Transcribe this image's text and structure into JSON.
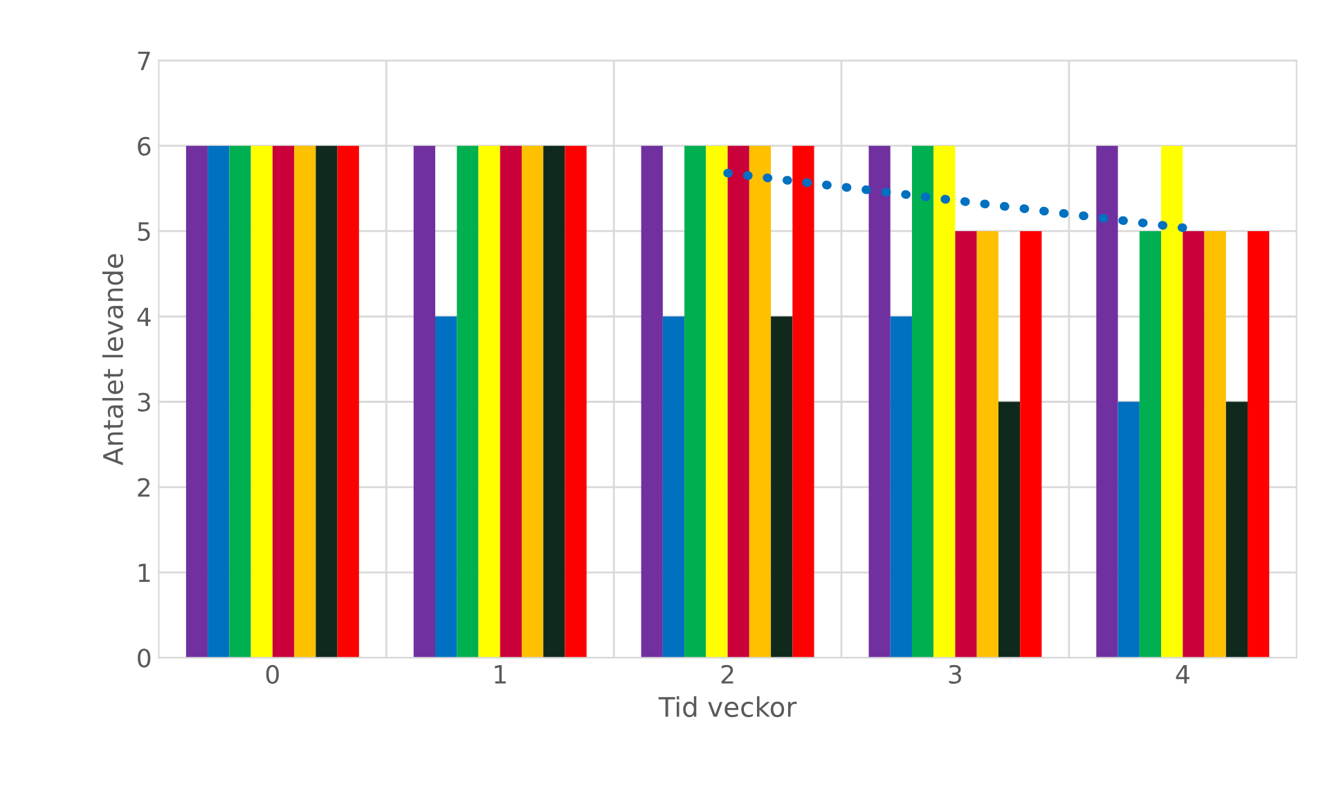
{
  "chart_data": {
    "type": "bar",
    "xlabel": "Tid veckor",
    "ylabel": "Antalet levande",
    "categories": [
      "0",
      "1",
      "2",
      "3",
      "4"
    ],
    "series": [
      {
        "color": "#7030a0",
        "values": [
          6,
          6,
          6,
          6,
          6
        ]
      },
      {
        "color": "#0070c0",
        "values": [
          6,
          4,
          4,
          4,
          3
        ]
      },
      {
        "color": "#00b050",
        "values": [
          6,
          6,
          6,
          6,
          5
        ]
      },
      {
        "color": "#ffff00",
        "values": [
          6,
          6,
          6,
          6,
          6
        ]
      },
      {
        "color": "#c9003a",
        "values": [
          6,
          6,
          6,
          5,
          5
        ]
      },
      {
        "color": "#ffc000",
        "values": [
          6,
          6,
          6,
          5,
          5
        ]
      },
      {
        "color": "#0f2a1d",
        "values": [
          6,
          6,
          4,
          3,
          3
        ]
      },
      {
        "color": "#ff0000",
        "values": [
          6,
          6,
          6,
          5,
          5
        ]
      },
      {
        "type": "line",
        "color": "#0070c0",
        "line_style": "dotted",
        "values": [
          null,
          null,
          5.68,
          5.36,
          5.04
        ]
      }
    ],
    "ylim": [
      0,
      7
    ],
    "yticks": [
      0,
      1,
      2,
      3,
      4,
      5,
      6,
      7
    ],
    "grid": true
  }
}
